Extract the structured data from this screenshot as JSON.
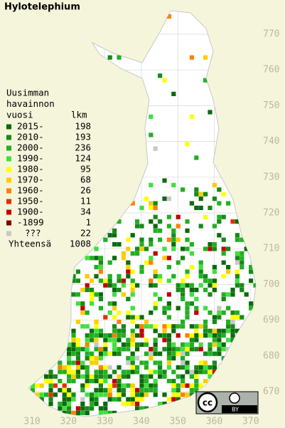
{
  "title": "Hylotelephium",
  "legend": {
    "heading": [
      "Uusimman",
      "havainnon",
      "vuosi"
    ],
    "count_heading": "lkm",
    "rows": [
      {
        "label": "2015-",
        "count": 198,
        "color": "#0b6b0b"
      },
      {
        "label": "2010-",
        "count": 193,
        "color": "#178a17"
      },
      {
        "label": "2000-",
        "count": 236,
        "color": "#22b022"
      },
      {
        "label": "1990-",
        "count": 124,
        "color": "#3fe03f"
      },
      {
        "label": "1980-",
        "count": 95,
        "color": "#ffff00"
      },
      {
        "label": "1970-",
        "count": 68,
        "color": "#ffcc00"
      },
      {
        "label": "1960-",
        "count": 26,
        "color": "#ff8000"
      },
      {
        "label": "1950-",
        "count": 11,
        "color": "#e03000"
      },
      {
        "label": "1900-",
        "count": 34,
        "color": "#c00000"
      },
      {
        "label": "-1899",
        "count": 1,
        "color": "#800000"
      },
      {
        "label": "???",
        "count": 22,
        "color": "#c8c8c8"
      }
    ],
    "total_label": "Yhteensä",
    "total": 1008
  },
  "grid": {
    "northing": [
      770,
      760,
      750,
      740,
      730,
      720,
      710,
      700,
      690,
      680,
      670
    ],
    "easting": [
      310,
      320,
      330,
      340,
      350,
      360,
      370
    ]
  },
  "license": {
    "cc": "cc",
    "by": "BY"
  }
}
